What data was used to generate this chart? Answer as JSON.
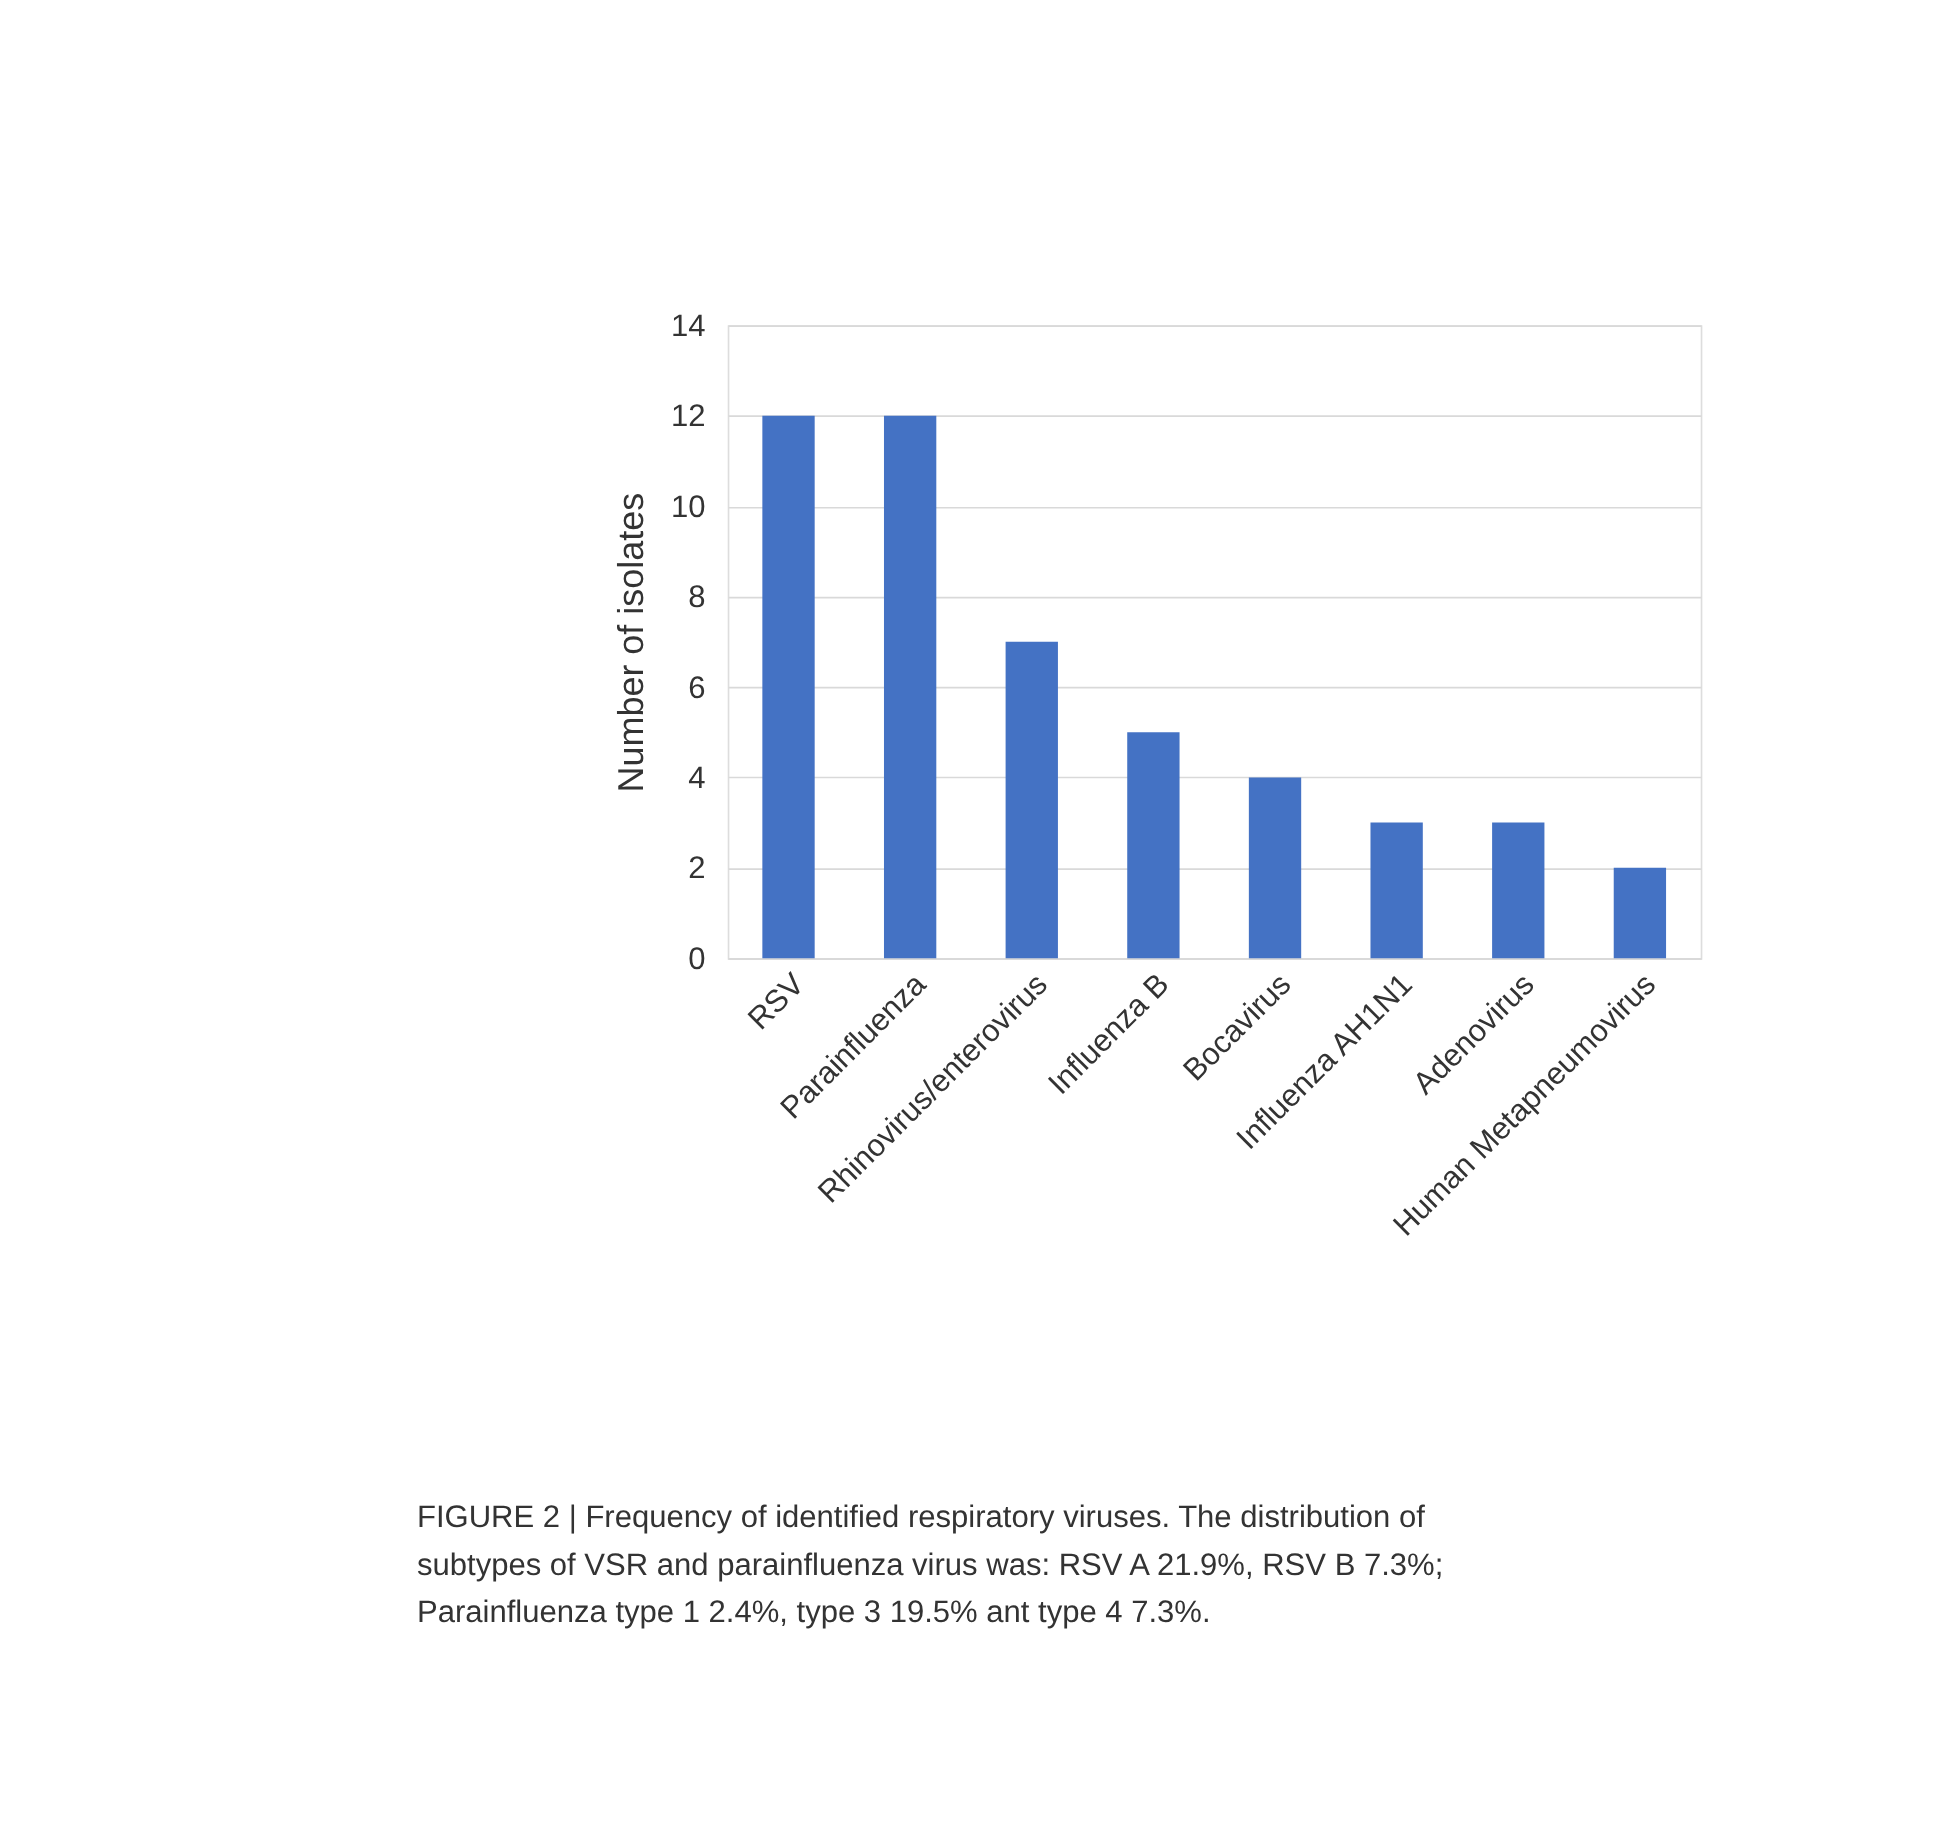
{
  "chart_data": {
    "type": "bar",
    "ylabel": "Number of isolates",
    "categories": [
      "RSV",
      "Parainfluenza",
      "Rhinovirus/enterovirus",
      "Influenza B",
      "Bocavirus",
      "Influenza AH1N1",
      "Adenovirus",
      "Human Metapneumovirus"
    ],
    "values": [
      12,
      12,
      7,
      5,
      4,
      3,
      3,
      2
    ],
    "color": "#4472c4",
    "ylim": [
      0,
      14
    ],
    "yticks": [
      0,
      2,
      4,
      6,
      8,
      10,
      12,
      14
    ],
    "grid": "y",
    "annotations": [
      "FIGURE 2 | Frequency of identified respiratory viruses. The distribution of subtypes of VSR and parainfluenza virus was: RSV A 21.9%, RSV B 7.3%; Parainfluenza type 1 2.4%, type 3 19.5% ant type 4 7.3%."
    ]
  }
}
